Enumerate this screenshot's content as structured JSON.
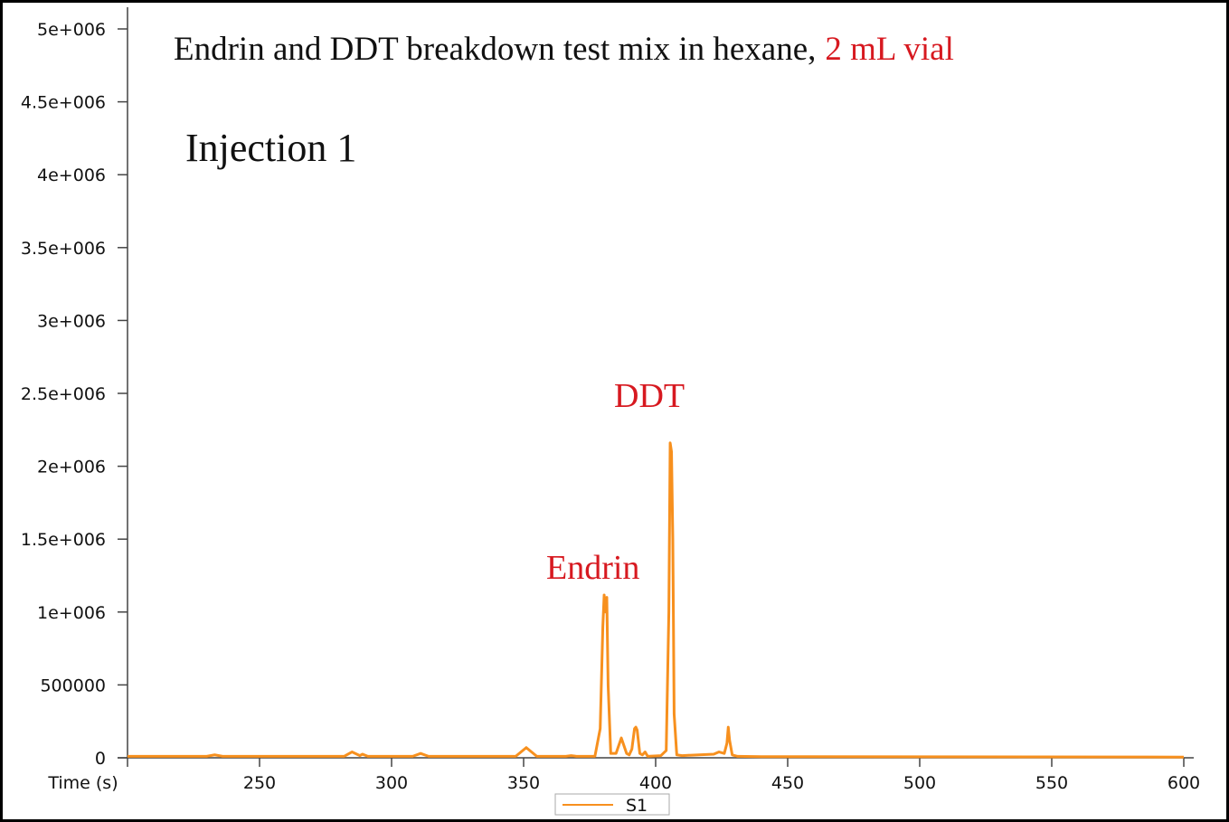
{
  "chart_data": {
    "type": "line",
    "title": "Endrin and DDT breakdown test mix in hexane,",
    "title_highlight": "2 mL vial",
    "annotations": [
      "Injection 1",
      "Endrin",
      "DDT"
    ],
    "xlabel": "Time (s)",
    "xlim": [
      200,
      600
    ],
    "xticks": [
      250,
      300,
      350,
      400,
      450,
      500,
      550,
      600
    ],
    "ylim": [
      0,
      5000000
    ],
    "yticks": [
      0,
      500000,
      {
        "value": 1000000,
        "label": "1e+006"
      },
      {
        "value": 1500000,
        "label": "1.5e+006"
      },
      {
        "value": 2000000,
        "label": "2e+006"
      },
      {
        "value": 2500000,
        "label": "2.5e+006"
      },
      {
        "value": 3000000,
        "label": "3e+006"
      },
      {
        "value": 3500000,
        "label": "3.5e+006"
      },
      {
        "value": 4000000,
        "label": "4e+006"
      },
      {
        "value": 4500000,
        "label": "4.5e+006"
      },
      {
        "value": 5000000,
        "label": "5e+006"
      }
    ],
    "grid": false,
    "legend": "bottom",
    "x": [
      200,
      230,
      233,
      236,
      282,
      285,
      288,
      289,
      291,
      308,
      311,
      314,
      347,
      351,
      355,
      366,
      368,
      370,
      377,
      379,
      380,
      380.5,
      381,
      381.5,
      382,
      383,
      385,
      387,
      389,
      390,
      391,
      392,
      392.5,
      393,
      394,
      395,
      396,
      397,
      402,
      404,
      405,
      405.5,
      406,
      406.5,
      407,
      408,
      410,
      422,
      424,
      426,
      427,
      427.5,
      428,
      429,
      431,
      440,
      600
    ],
    "series": [
      {
        "name": "S1",
        "color": "#f7901e",
        "values": [
          10000,
          10000,
          20000,
          10000,
          10000,
          40000,
          15000,
          25000,
          10000,
          10000,
          30000,
          10000,
          10000,
          70000,
          10000,
          10000,
          15000,
          10000,
          10000,
          200000,
          900000,
          1117000,
          1000000,
          1100000,
          500000,
          30000,
          30000,
          136000,
          30000,
          20000,
          60000,
          200000,
          210000,
          190000,
          30000,
          20000,
          40000,
          10000,
          15000,
          50000,
          1000000,
          2160000,
          2100000,
          1500000,
          300000,
          20000,
          15000,
          25000,
          40000,
          30000,
          100000,
          210000,
          120000,
          20000,
          10000,
          8000,
          5000
        ]
      }
    ]
  }
}
